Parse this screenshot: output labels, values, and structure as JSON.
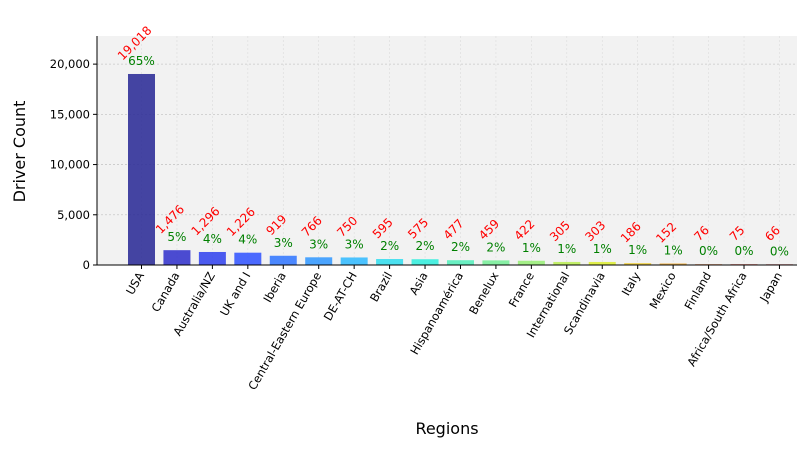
{
  "chart_data": {
    "type": "bar",
    "title": "",
    "xlabel": "Regions",
    "ylabel": "Driver Count",
    "ylim": [
      0,
      22800
    ],
    "yticks": [
      0,
      5000,
      10000,
      15000,
      20000
    ],
    "ytick_labels": [
      "0",
      "5,000",
      "10,000",
      "15,000",
      "20,000"
    ],
    "grid": true,
    "categories": [
      "USA",
      "Canada",
      "Australia/NZ",
      "UK and I",
      "Iberia",
      "Central-Eastern Europe",
      "DE-AT-CH",
      "Brazil",
      "Asia",
      "Hispanoamérica",
      "Benelux",
      "France",
      "International",
      "Scandinavia",
      "Italy",
      "Mexico",
      "Finland",
      "Africa/South Africa",
      "Japan"
    ],
    "values": [
      19018,
      1476,
      1296,
      1226,
      919,
      766,
      750,
      595,
      575,
      477,
      459,
      422,
      305,
      303,
      186,
      152,
      76,
      75,
      66
    ],
    "count_labels": [
      "19,018",
      "1,476",
      "1,296",
      "1,226",
      "919",
      "766",
      "750",
      "595",
      "575",
      "477",
      "459",
      "422",
      "305",
      "303",
      "186",
      "152",
      "76",
      "75",
      "66"
    ],
    "percent_labels": [
      "65%",
      "5%",
      "4%",
      "4%",
      "3%",
      "3%",
      "3%",
      "2%",
      "2%",
      "2%",
      "2%",
      "1%",
      "1%",
      "1%",
      "1%",
      "1%",
      "0%",
      "0%",
      "0%"
    ],
    "bar_colors": [
      "#2b2b96",
      "#3333cc",
      "#3344ee",
      "#3355ff",
      "#3377ff",
      "#3399ff",
      "#33bbff",
      "#33ddee",
      "#33eedd",
      "#55eebb",
      "#77ee99",
      "#99ee77",
      "#bbee55",
      "#ddee33",
      "#eecc33",
      "#eeaa33",
      "#ee7733",
      "#ee4433",
      "#cc2222"
    ],
    "count_label_color": "#ff0000",
    "percent_label_color": "#008000",
    "plot_background": "#f2f2f2"
  }
}
